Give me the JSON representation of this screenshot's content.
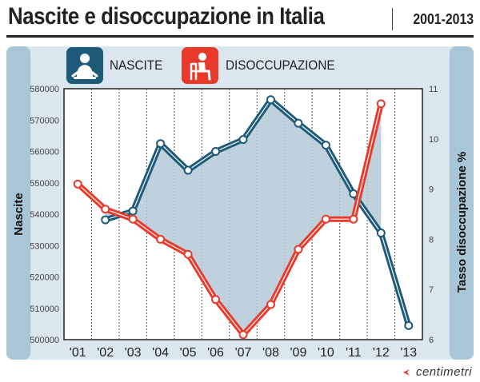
{
  "header": {
    "title": "Nascite e disoccupazione in Italia",
    "years": "2001-2013"
  },
  "legend": {
    "births_label": "NASCITE",
    "unemployment_label": "DISOCCUPAZIONE",
    "births_icon": "baby-icon",
    "unemployment_icon": "seated-person-icon"
  },
  "brand": "centimetri",
  "colors": {
    "births": "#1d5a78",
    "unemployment": "#e8392b",
    "panel": "#a9c6d6",
    "fill": "#b3c9d7",
    "background": "#dbe7ef"
  },
  "chart_data": {
    "type": "line",
    "title": "Nascite e disoccupazione in Italia",
    "subtitle": "2001-2013",
    "categories": [
      "'01",
      "'02",
      "'03",
      "'04",
      "'05",
      "'06",
      "'07",
      "'08",
      "'09",
      "'10",
      "'11",
      "'12",
      "'13"
    ],
    "ylabel": "Nascite",
    "y2label": "Tasso disoccupazione %",
    "ylim": [
      500000,
      580000
    ],
    "yticks": [
      "580000",
      "570000",
      "560000",
      "550000",
      "540000",
      "530000",
      "520000",
      "510000",
      "500000"
    ],
    "y2lim": [
      6,
      11
    ],
    "y2ticks": [
      "11",
      "10",
      "9",
      "8",
      "7",
      "6"
    ],
    "grid": "vertical dotted",
    "series": [
      {
        "name": "NASCITE",
        "axis": "left",
        "values": [
          null,
          538200,
          541000,
          562500,
          554000,
          560000,
          563800,
          576500,
          569000,
          562000,
          546500,
          534000,
          504500
        ]
      },
      {
        "name": "DISOCCUPAZIONE",
        "axis": "right",
        "values": [
          9.1,
          8.6,
          8.4,
          8.0,
          7.7,
          6.8,
          6.1,
          6.7,
          7.8,
          8.4,
          8.4,
          10.7,
          null
        ]
      }
    ]
  }
}
